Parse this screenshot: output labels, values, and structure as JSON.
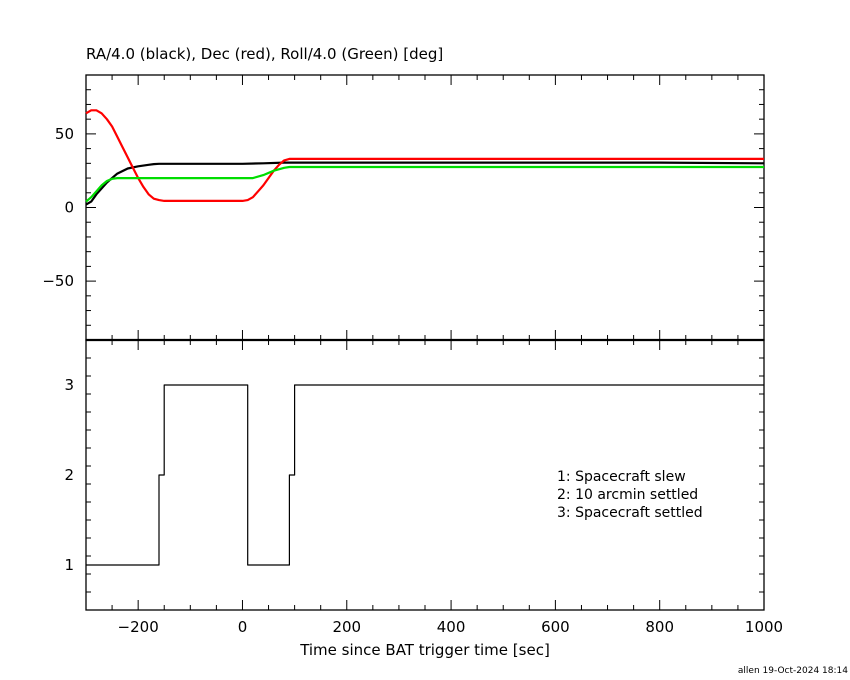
{
  "chart_data": [
    {
      "type": "line",
      "title": "RA/4.0 (black), Dec (red), Roll/4.0 (Green) [deg]",
      "xlim": [
        -300,
        1000
      ],
      "ylim": [
        -90,
        90
      ],
      "yticks": [
        -50,
        0,
        50
      ],
      "grid": false,
      "series": [
        {
          "color": "#000000",
          "x": [
            -300,
            -290,
            -280,
            -260,
            -240,
            -220,
            -200,
            -180,
            -170,
            -160,
            0,
            40,
            80,
            100,
            200,
            400,
            600,
            800,
            1000
          ],
          "y": [
            2,
            4,
            9,
            17,
            23,
            26.5,
            28,
            29,
            29.5,
            29.7,
            29.7,
            30,
            30.5,
            30.5,
            30.5,
            30.5,
            30.5,
            30.5,
            30
          ]
        },
        {
          "color": "#ff0000",
          "x": [
            -300,
            -290,
            -280,
            -270,
            -260,
            -250,
            -240,
            -230,
            -220,
            -210,
            -200,
            -190,
            -180,
            -170,
            -160,
            -150,
            -140,
            0,
            10,
            20,
            30,
            40,
            50,
            60,
            70,
            80,
            90,
            100,
            200,
            400,
            600,
            800,
            1000
          ],
          "y": [
            64,
            66,
            66,
            64,
            60,
            55,
            48,
            41,
            34,
            27,
            20,
            14,
            9,
            6,
            5,
            4.5,
            4.5,
            4.5,
            5,
            7,
            11,
            15,
            20,
            25,
            29,
            32,
            33,
            33,
            33,
            33,
            33,
            33,
            33
          ]
        },
        {
          "color": "#00dd00",
          "x": [
            -300,
            -290,
            -280,
            -270,
            -260,
            -250,
            -240,
            -230,
            -220,
            -200,
            0,
            20,
            40,
            60,
            80,
            90,
            100,
            200,
            400,
            600,
            800,
            1000
          ],
          "y": [
            4,
            7,
            11,
            15,
            18,
            19.5,
            20,
            20,
            20,
            20,
            20,
            20,
            22,
            25,
            27,
            27.5,
            27.5,
            27.5,
            27.5,
            27.5,
            27.5,
            27.5
          ]
        }
      ]
    },
    {
      "type": "line",
      "xlabel": "Time since BAT trigger time [sec]",
      "xlim": [
        -300,
        1000
      ],
      "ylim": [
        0.5,
        3.5
      ],
      "yticks": [
        1,
        2,
        3
      ],
      "xticks": [
        -200,
        0,
        200,
        400,
        600,
        800,
        1000
      ],
      "grid": false,
      "legend_entries": [
        "1: Spacecraft slew",
        "2: 10 arcmin settled",
        "3: Spacecraft settled"
      ],
      "series": [
        {
          "color": "#000000",
          "step": true,
          "x": [
            -300,
            -160,
            -150,
            10,
            90,
            100,
            1000
          ],
          "y": [
            1,
            2,
            3,
            1,
            2,
            3,
            3
          ]
        }
      ]
    }
  ],
  "footer": {
    "credit": "allen 19-Oct-2024 18:14"
  }
}
